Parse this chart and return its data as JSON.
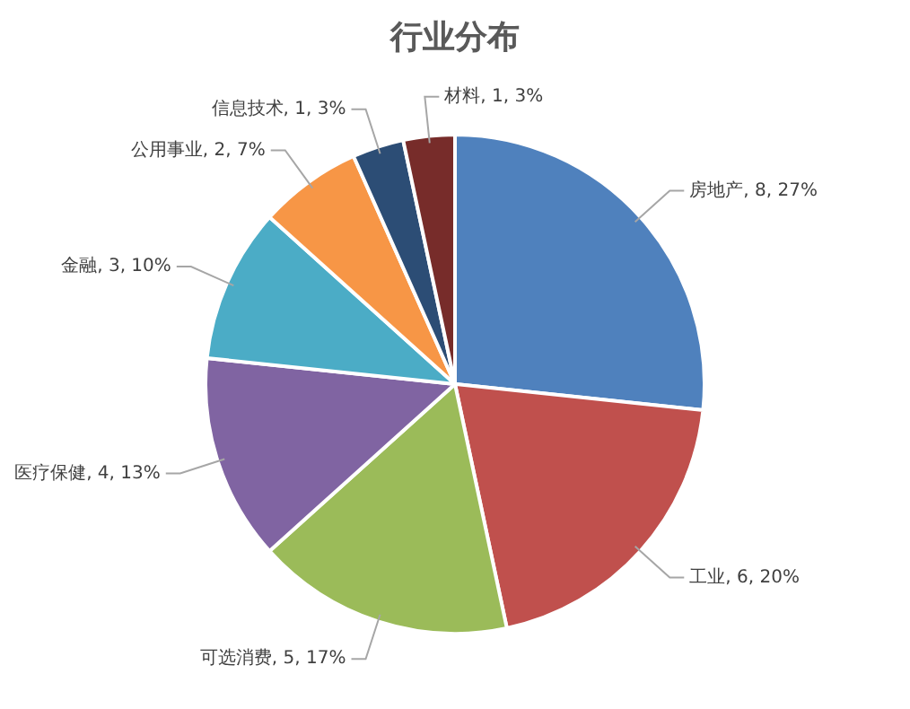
{
  "chart_data": {
    "type": "pie",
    "title": "行业分布",
    "categories": [
      "房地产",
      "工业",
      "可选消费",
      "医疗保健",
      "金融",
      "公用事业",
      "信息技术",
      "材料"
    ],
    "values": [
      8,
      6,
      5,
      4,
      3,
      2,
      1,
      1
    ],
    "colors": [
      "#4f81bd",
      "#c0504d",
      "#9bbb59",
      "#8064a2",
      "#4bacc6",
      "#f79646",
      "#2c4d75",
      "#772c2a"
    ],
    "value_labels": [
      "8, 27%",
      "6, 20%",
      "5, 17%",
      "4, 13%",
      "3, 10%",
      "2, 7%",
      "1, 3%",
      "1, 3%"
    ],
    "legend": false
  }
}
